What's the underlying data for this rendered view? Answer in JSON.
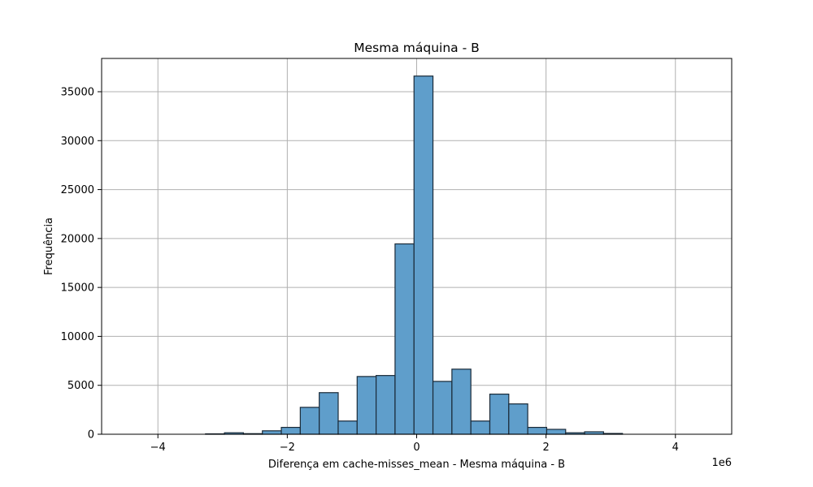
{
  "chart_data": {
    "type": "histogram",
    "title": "Mesma máquina - B",
    "xlabel": "Diferença em cache-misses_mean - Mesma máquina - B",
    "ylabel": "Frequência",
    "x_offset_label": "1e6",
    "xlim": [
      -4.87,
      4.87
    ],
    "ylim": [
      0,
      38400
    ],
    "x_ticks": [
      -4,
      -2,
      0,
      2,
      4
    ],
    "x_tick_labels": [
      "−4",
      "−2",
      "0",
      "2",
      "4"
    ],
    "y_ticks": [
      0,
      5000,
      10000,
      15000,
      20000,
      25000,
      30000,
      35000
    ],
    "y_tick_labels": [
      "0",
      "5000",
      "10000",
      "15000",
      "20000",
      "25000",
      "30000",
      "35000"
    ],
    "grid": true,
    "bar_color": "#5f9ecb",
    "bar_edge_color": "#1a2a38",
    "bins": [
      {
        "x0": -4.436,
        "x1": -4.143,
        "count": 0
      },
      {
        "x0": -4.143,
        "x1": -3.85,
        "count": 0
      },
      {
        "x0": -3.85,
        "x1": -3.557,
        "count": 0
      },
      {
        "x0": -3.557,
        "x1": -3.264,
        "count": 0
      },
      {
        "x0": -3.264,
        "x1": -2.971,
        "count": 40
      },
      {
        "x0": -2.971,
        "x1": -2.678,
        "count": 150
      },
      {
        "x0": -2.678,
        "x1": -2.385,
        "count": 60
      },
      {
        "x0": -2.385,
        "x1": -2.092,
        "count": 350
      },
      {
        "x0": -2.092,
        "x1": -1.799,
        "count": 700
      },
      {
        "x0": -1.799,
        "x1": -1.506,
        "count": 2750
      },
      {
        "x0": -1.506,
        "x1": -1.213,
        "count": 4250
      },
      {
        "x0": -1.213,
        "x1": -0.92,
        "count": 1350
      },
      {
        "x0": -0.92,
        "x1": -0.627,
        "count": 5900
      },
      {
        "x0": -0.627,
        "x1": -0.334,
        "count": 6000
      },
      {
        "x0": -0.334,
        "x1": -0.041,
        "count": 19450
      },
      {
        "x0": -0.041,
        "x1": 0.252,
        "count": 36600
      },
      {
        "x0": 0.252,
        "x1": 0.545,
        "count": 5400
      },
      {
        "x0": 0.545,
        "x1": 0.838,
        "count": 6650
      },
      {
        "x0": 0.838,
        "x1": 1.131,
        "count": 1350
      },
      {
        "x0": 1.131,
        "x1": 1.424,
        "count": 4100
      },
      {
        "x0": 1.424,
        "x1": 1.717,
        "count": 3100
      },
      {
        "x0": 1.717,
        "x1": 2.01,
        "count": 700
      },
      {
        "x0": 2.01,
        "x1": 2.303,
        "count": 500
      },
      {
        "x0": 2.303,
        "x1": 2.596,
        "count": 150
      },
      {
        "x0": 2.596,
        "x1": 2.889,
        "count": 250
      },
      {
        "x0": 2.889,
        "x1": 3.182,
        "count": 80
      },
      {
        "x0": 3.182,
        "x1": 3.475,
        "count": 0
      },
      {
        "x0": 3.475,
        "x1": 3.768,
        "count": 0
      },
      {
        "x0": 3.768,
        "x1": 4.061,
        "count": 0
      },
      {
        "x0": 4.061,
        "x1": 4.354,
        "count": 0
      }
    ]
  }
}
